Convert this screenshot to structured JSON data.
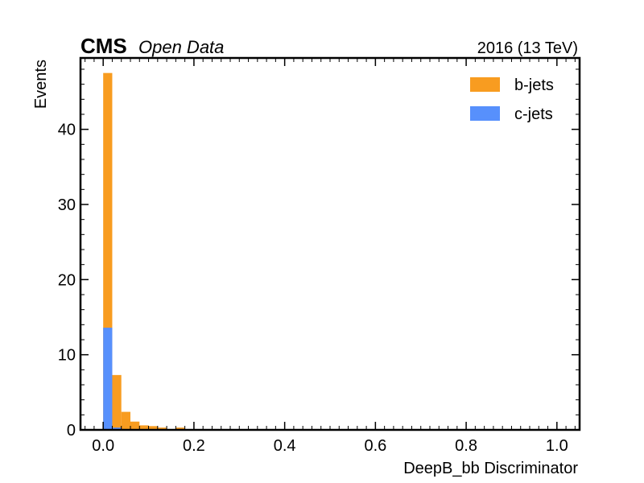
{
  "chart_data": {
    "type": "bar",
    "stacked": false,
    "title": "",
    "experiment_label": "CMS",
    "experiment_sublabel": "Open Data",
    "lumi_label": "2016 (13 TeV)",
    "xlabel": "DeepB_bb Discriminator",
    "ylabel": "Events",
    "xlim": [
      -0.05,
      1.05
    ],
    "ylim": [
      0,
      49.5
    ],
    "xticks": [
      0.0,
      0.2,
      0.4,
      0.6,
      0.8,
      1.0
    ],
    "xtick_labels": [
      "0.0",
      "0.2",
      "0.4",
      "0.6",
      "0.8",
      "1.0"
    ],
    "yticks": [
      0,
      10,
      20,
      30,
      40
    ],
    "ytick_labels": [
      "0",
      "10",
      "20",
      "30",
      "40"
    ],
    "bin_edges": [
      0.0,
      0.02,
      0.04,
      0.06,
      0.08,
      0.1,
      0.12,
      0.14,
      0.16,
      0.18
    ],
    "legend_position": "top-right",
    "series": [
      {
        "name": "b-jets",
        "color": "#f89c20",
        "values": [
          47.5,
          7.3,
          2.4,
          1.1,
          0.6,
          0.5,
          0.3,
          0.1,
          0.3
        ]
      },
      {
        "name": "c-jets",
        "color": "#5790fc",
        "values": [
          13.6,
          0.3,
          0.1,
          0.0,
          0.0,
          0.0,
          0.0,
          0.0,
          0.0
        ]
      }
    ]
  }
}
